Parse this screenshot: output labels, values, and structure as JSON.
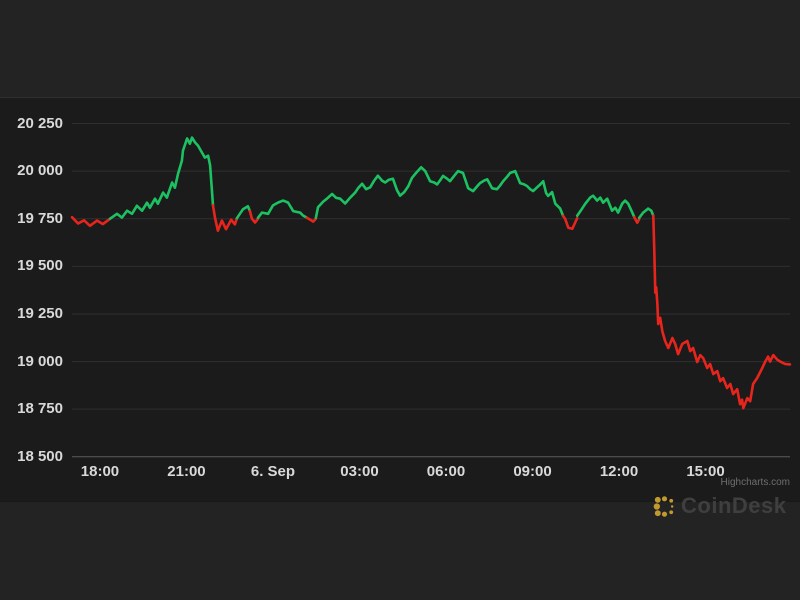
{
  "page": {
    "background": "#232323",
    "chart_background": "#1b1b1b",
    "gridline_color": "#2f2f2f",
    "axisline_color": "#5c5c5c",
    "label_color": "#d9d9d9"
  },
  "watermark": {
    "text": "CoinDesk",
    "icon": "coindesk-dots-logo",
    "icon_color": "#c1992e",
    "text_color": "#3f3f3f"
  },
  "credits": {
    "text": "Highcharts.com"
  },
  "chart_data": {
    "type": "line",
    "title": "",
    "xlabel": "",
    "ylabel": "",
    "x_unit": "hours since 17:00 (5 Sep)",
    "xlim": [
      0.03,
      24.93
    ],
    "ylim": [
      18500,
      20380
    ],
    "grid": true,
    "legend": false,
    "colors": {
      "up": "#1cc262",
      "down": "#e8251d"
    },
    "x_ticks": [
      {
        "t": 1,
        "label": "18:00"
      },
      {
        "t": 4,
        "label": "21:00"
      },
      {
        "t": 7,
        "label": "6. Sep"
      },
      {
        "t": 10,
        "label": "03:00"
      },
      {
        "t": 13,
        "label": "06:00"
      },
      {
        "t": 16,
        "label": "09:00"
      },
      {
        "t": 19,
        "label": "12:00"
      },
      {
        "t": 22,
        "label": "15:00"
      }
    ],
    "y_ticks": [
      {
        "v": 18500,
        "label": "18 500"
      },
      {
        "v": 18750,
        "label": "18 750"
      },
      {
        "v": 19000,
        "label": "19 000"
      },
      {
        "v": 19250,
        "label": "19 250"
      },
      {
        "v": 19500,
        "label": "19 500"
      },
      {
        "v": 19750,
        "label": "19 750"
      },
      {
        "v": 20000,
        "label": "20 000"
      },
      {
        "v": 20250,
        "label": "20 250"
      }
    ],
    "segments": [
      {
        "trend": "down",
        "points": [
          [
            0.03,
            19758
          ],
          [
            0.24,
            19725
          ],
          [
            0.45,
            19742
          ],
          [
            0.65,
            19713
          ],
          [
            0.9,
            19740
          ],
          [
            1.1,
            19722
          ],
          [
            1.35,
            19750
          ]
        ]
      },
      {
        "trend": "up",
        "points": [
          [
            1.35,
            19750
          ],
          [
            1.59,
            19776
          ],
          [
            1.76,
            19756
          ],
          [
            1.94,
            19792
          ],
          [
            2.11,
            19776
          ],
          [
            2.28,
            19818
          ],
          [
            2.46,
            19792
          ],
          [
            2.63,
            19834
          ],
          [
            2.73,
            19808
          ],
          [
            2.91,
            19855
          ],
          [
            3.01,
            19829
          ],
          [
            3.19,
            19887
          ],
          [
            3.32,
            19861
          ],
          [
            3.5,
            19940
          ],
          [
            3.6,
            19913
          ],
          [
            3.71,
            19987
          ],
          [
            3.84,
            20055
          ],
          [
            3.88,
            20108
          ],
          [
            4.02,
            20171
          ],
          [
            4.12,
            20144
          ],
          [
            4.19,
            20176
          ],
          [
            4.3,
            20150
          ],
          [
            4.4,
            20134
          ],
          [
            4.54,
            20097
          ],
          [
            4.64,
            20071
          ],
          [
            4.75,
            20081
          ],
          [
            4.82,
            20030
          ],
          [
            4.92,
            19820
          ]
        ]
      },
      {
        "trend": "down",
        "points": [
          [
            4.92,
            19820
          ],
          [
            4.99,
            19755
          ],
          [
            5.09,
            19687
          ],
          [
            5.23,
            19740
          ],
          [
            5.37,
            19695
          ],
          [
            5.55,
            19745
          ],
          [
            5.68,
            19720
          ],
          [
            5.75,
            19753
          ]
        ]
      },
      {
        "trend": "up",
        "points": [
          [
            5.75,
            19753
          ],
          [
            5.96,
            19800
          ],
          [
            6.13,
            19815
          ],
          [
            6.2,
            19790
          ]
        ]
      },
      {
        "trend": "down",
        "points": [
          [
            6.2,
            19790
          ],
          [
            6.27,
            19750
          ],
          [
            6.38,
            19730
          ],
          [
            6.48,
            19750
          ]
        ]
      },
      {
        "trend": "up",
        "points": [
          [
            6.48,
            19755
          ],
          [
            6.62,
            19782
          ],
          [
            6.83,
            19776
          ],
          [
            7.0,
            19820
          ],
          [
            7.18,
            19835
          ],
          [
            7.35,
            19845
          ],
          [
            7.52,
            19835
          ],
          [
            7.7,
            19790
          ],
          [
            7.94,
            19782
          ],
          [
            8.04,
            19767
          ],
          [
            8.18,
            19755
          ]
        ]
      },
      {
        "trend": "down",
        "points": [
          [
            8.18,
            19755
          ],
          [
            8.29,
            19745
          ],
          [
            8.39,
            19735
          ],
          [
            8.49,
            19750
          ]
        ]
      },
      {
        "trend": "up",
        "points": [
          [
            8.49,
            19755
          ],
          [
            8.56,
            19810
          ],
          [
            8.74,
            19840
          ],
          [
            8.87,
            19855
          ],
          [
            9.05,
            19880
          ],
          [
            9.19,
            19860
          ],
          [
            9.33,
            19855
          ],
          [
            9.5,
            19830
          ],
          [
            9.67,
            19860
          ],
          [
            9.85,
            19887
          ],
          [
            9.95,
            19910
          ],
          [
            10.09,
            19934
          ],
          [
            10.23,
            19905
          ],
          [
            10.37,
            19915
          ],
          [
            10.51,
            19950
          ],
          [
            10.64,
            19976
          ],
          [
            10.78,
            19950
          ],
          [
            10.89,
            19940
          ],
          [
            11.02,
            19955
          ],
          [
            11.16,
            19960
          ],
          [
            11.3,
            19900
          ],
          [
            11.41,
            19871
          ],
          [
            11.55,
            19890
          ],
          [
            11.69,
            19920
          ],
          [
            11.82,
            19965
          ],
          [
            11.96,
            19990
          ],
          [
            12.14,
            20020
          ],
          [
            12.28,
            20000
          ],
          [
            12.45,
            19947
          ],
          [
            12.59,
            19940
          ],
          [
            12.69,
            19930
          ],
          [
            12.79,
            19950
          ],
          [
            12.9,
            19975
          ],
          [
            13.04,
            19960
          ],
          [
            13.14,
            19947
          ],
          [
            13.28,
            19975
          ],
          [
            13.42,
            20000
          ],
          [
            13.59,
            19990
          ],
          [
            13.77,
            19910
          ],
          [
            13.94,
            19895
          ],
          [
            14.08,
            19920
          ],
          [
            14.18,
            19937
          ],
          [
            14.32,
            19950
          ],
          [
            14.43,
            19957
          ],
          [
            14.6,
            19910
          ],
          [
            14.77,
            19905
          ],
          [
            14.88,
            19925
          ],
          [
            14.98,
            19947
          ],
          [
            15.12,
            19970
          ],
          [
            15.22,
            19990
          ],
          [
            15.4,
            20000
          ],
          [
            15.57,
            19937
          ],
          [
            15.71,
            19930
          ],
          [
            15.81,
            19922
          ],
          [
            15.92,
            19905
          ],
          [
            16.02,
            19895
          ],
          [
            16.16,
            19915
          ],
          [
            16.27,
            19930
          ],
          [
            16.37,
            19947
          ],
          [
            16.47,
            19885
          ],
          [
            16.54,
            19870
          ],
          [
            16.68,
            19890
          ],
          [
            16.79,
            19829
          ],
          [
            16.96,
            19803
          ],
          [
            17.06,
            19765
          ]
        ]
      },
      {
        "trend": "down",
        "points": [
          [
            17.06,
            19765
          ],
          [
            17.13,
            19750
          ],
          [
            17.24,
            19703
          ],
          [
            17.38,
            19697
          ],
          [
            17.48,
            19730
          ],
          [
            17.55,
            19753
          ]
        ]
      },
      {
        "trend": "up",
        "points": [
          [
            17.55,
            19766
          ],
          [
            17.72,
            19803
          ],
          [
            17.83,
            19829
          ],
          [
            18.0,
            19861
          ],
          [
            18.1,
            19871
          ],
          [
            18.24,
            19845
          ],
          [
            18.35,
            19861
          ],
          [
            18.45,
            19834
          ],
          [
            18.59,
            19855
          ],
          [
            18.76,
            19792
          ],
          [
            18.87,
            19808
          ],
          [
            18.97,
            19782
          ],
          [
            19.11,
            19829
          ],
          [
            19.21,
            19845
          ],
          [
            19.32,
            19829
          ],
          [
            19.46,
            19782
          ],
          [
            19.53,
            19758
          ]
        ]
      },
      {
        "trend": "down",
        "points": [
          [
            19.53,
            19758
          ],
          [
            19.63,
            19729
          ],
          [
            19.7,
            19748
          ]
        ]
      },
      {
        "trend": "up",
        "points": [
          [
            19.7,
            19755
          ],
          [
            19.84,
            19782
          ],
          [
            20.01,
            19803
          ],
          [
            20.12,
            19792
          ],
          [
            20.19,
            19766
          ]
        ]
      },
      {
        "trend": "down",
        "points": [
          [
            20.19,
            19766
          ],
          [
            20.22,
            19600
          ],
          [
            20.26,
            19362
          ],
          [
            20.29,
            19390
          ],
          [
            20.33,
            19300
          ],
          [
            20.36,
            19197
          ],
          [
            20.43,
            19230
          ],
          [
            20.5,
            19160
          ],
          [
            20.6,
            19108
          ],
          [
            20.71,
            19071
          ],
          [
            20.85,
            19124
          ],
          [
            20.95,
            19092
          ],
          [
            21.05,
            19039
          ],
          [
            21.19,
            19092
          ],
          [
            21.37,
            19108
          ],
          [
            21.47,
            19055
          ],
          [
            21.57,
            19071
          ],
          [
            21.71,
            18998
          ],
          [
            21.82,
            19034
          ],
          [
            21.92,
            19018
          ],
          [
            22.06,
            18966
          ],
          [
            22.16,
            18987
          ],
          [
            22.27,
            18934
          ],
          [
            22.41,
            18950
          ],
          [
            22.51,
            18897
          ],
          [
            22.61,
            18913
          ],
          [
            22.75,
            18861
          ],
          [
            22.86,
            18882
          ],
          [
            22.96,
            18829
          ],
          [
            23.1,
            18855
          ],
          [
            23.2,
            18776
          ],
          [
            23.27,
            18800
          ],
          [
            23.31,
            18755
          ],
          [
            23.45,
            18808
          ],
          [
            23.55,
            18792
          ],
          [
            23.65,
            18882
          ],
          [
            23.79,
            18913
          ],
          [
            23.97,
            18966
          ],
          [
            24.07,
            19000
          ],
          [
            24.17,
            19026
          ],
          [
            24.24,
            19000
          ],
          [
            24.35,
            19034
          ],
          [
            24.49,
            19010
          ],
          [
            24.59,
            19000
          ],
          [
            24.76,
            18987
          ],
          [
            24.93,
            18985
          ]
        ]
      }
    ]
  }
}
